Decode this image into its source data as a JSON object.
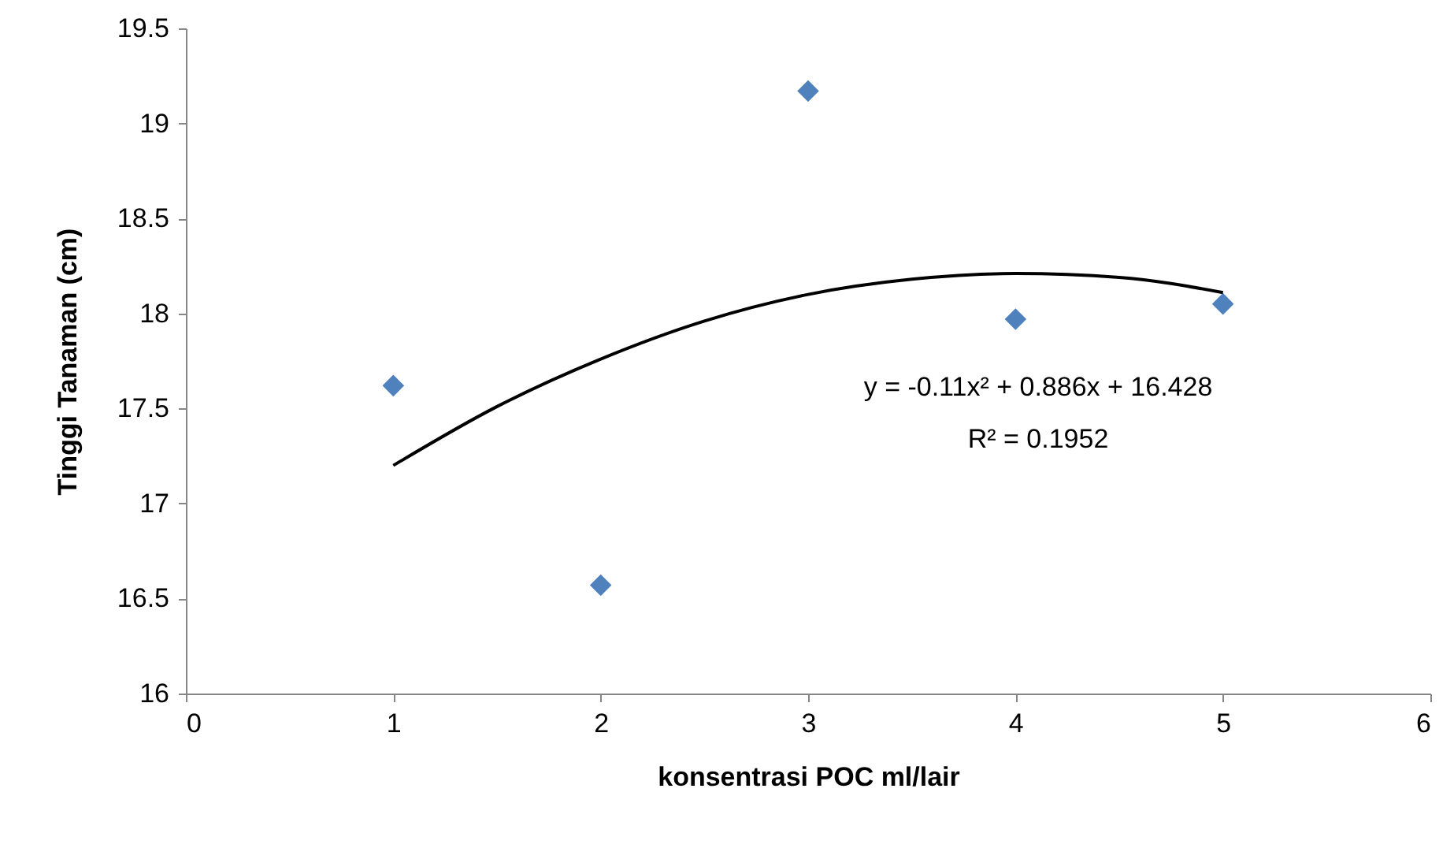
{
  "chart_data": {
    "type": "scatter",
    "xlabel": "konsentrasi  POC ml/lair",
    "ylabel": "Tinggi Tanaman (cm)",
    "xlim": [
      0,
      6
    ],
    "xticks": [
      0,
      1,
      2,
      3,
      4,
      5,
      6
    ],
    "ylim": [
      16,
      19.5
    ],
    "yticks": [
      16,
      16.5,
      17,
      17.5,
      18,
      18.5,
      19,
      19.5
    ],
    "grid": false,
    "marker": "diamond",
    "series": [
      {
        "color": "#4f81bd",
        "x": [
          1,
          2,
          3,
          4,
          5
        ],
        "values": [
          17.62,
          16.57,
          19.17,
          17.97,
          18.05
        ]
      },
      {
        "type": "line",
        "color": "#000000",
        "line_style": "solid",
        "marker": "none",
        "x": [
          1,
          1.5,
          2,
          2.5,
          3,
          3.5,
          4,
          4.5,
          5
        ],
        "values": [
          17.2,
          17.51,
          17.76,
          17.96,
          18.1,
          18.18,
          18.21,
          18.19,
          18.11
        ]
      }
    ],
    "annotations": [
      "y = -0.11x² + 0.886x + 16.428",
      "R² = 0.1952"
    ]
  }
}
